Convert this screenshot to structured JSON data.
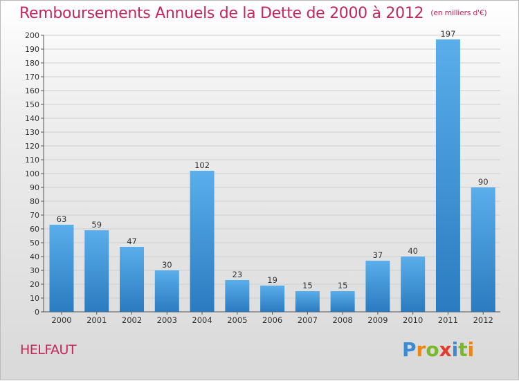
{
  "title": "Remboursements Annuels de la Dette de 2000 à 2012",
  "subtitle": "(en milliers d'€)",
  "commune": "HELFAUT",
  "logo": {
    "letters": [
      "P",
      "r",
      "o",
      "x",
      "i",
      "t",
      "i"
    ],
    "colors": [
      "#3a8ad6",
      "#e8861a",
      "#7ab829",
      "#e23b2e",
      "#3a8ad6",
      "#7ab829",
      "#e8861a"
    ]
  },
  "colors": {
    "bar_light": "#5aaeea",
    "bar_dark": "#2a7bc0",
    "title": "#c4275a"
  },
  "chart_data": {
    "type": "bar",
    "categories": [
      "2000",
      "2001",
      "2002",
      "2003",
      "2004",
      "2005",
      "2006",
      "2007",
      "2008",
      "2009",
      "2010",
      "2011",
      "2012"
    ],
    "values": [
      63,
      59,
      47,
      30,
      102,
      23,
      19,
      15,
      15,
      37,
      40,
      197,
      90
    ],
    "title": "Remboursements Annuels de la Dette de 2000 à 2012",
    "subtitle": "(en milliers d'€)",
    "xlabel": "",
    "ylabel": "",
    "ylim": [
      0,
      200
    ],
    "ytick_step": 10,
    "grid": true,
    "legend": "none"
  }
}
